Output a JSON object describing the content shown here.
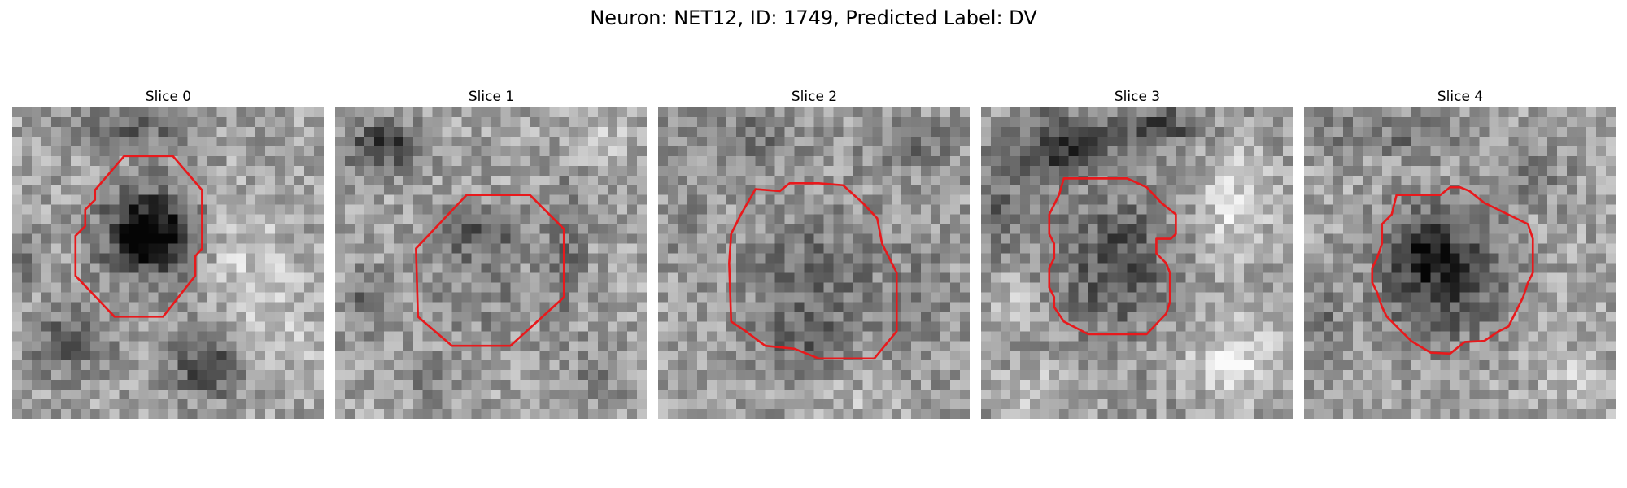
{
  "figure": {
    "title": "Neuron: NET12, ID: 1749, Predicted Label: DV"
  },
  "panels": [
    {
      "title": "Slice 0"
    },
    {
      "title": "Slice 1"
    },
    {
      "title": "Slice 2"
    },
    {
      "title": "Slice 3"
    },
    {
      "title": "Slice 4"
    }
  ],
  "colors": {
    "contour": "#e8191c",
    "background": "#ffffff",
    "colormap": "gray"
  },
  "image": {
    "pixel_grid": 32,
    "slices": 5
  }
}
